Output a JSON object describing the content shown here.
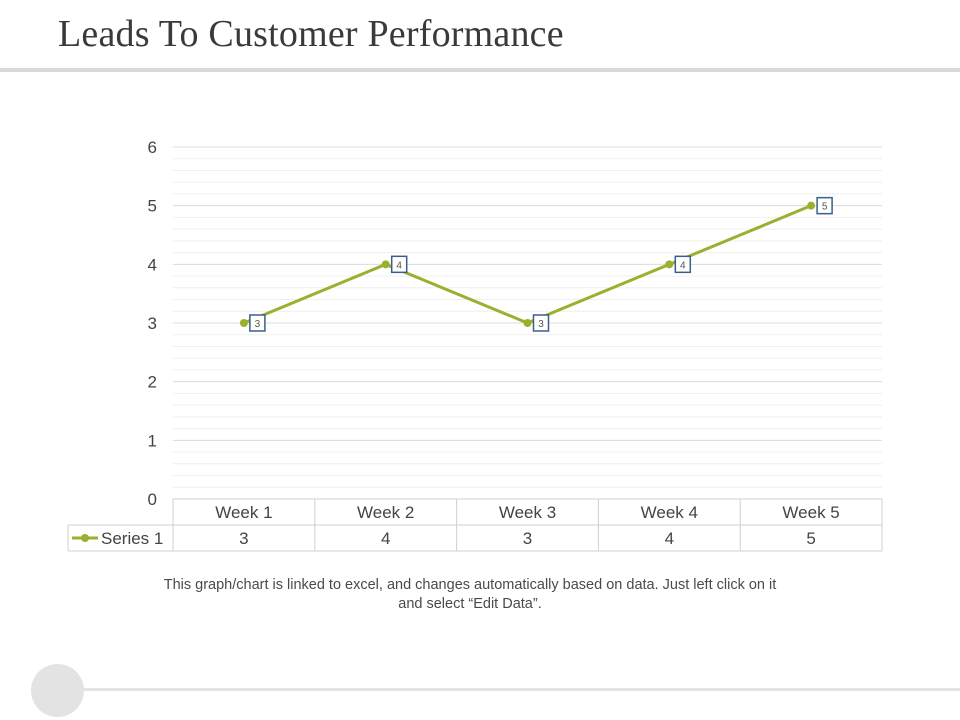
{
  "slide": {
    "title": "Leads To Customer Performance",
    "caption": "This graph/chart is linked to excel, and changes automatically based on data. Just left click on it and select “Edit Data”."
  },
  "chart_data": {
    "type": "line",
    "title": "",
    "xlabel": "",
    "ylabel": "",
    "categories": [
      "Week 1",
      "Week 2",
      "Week 3",
      "Week 4",
      "Week 5"
    ],
    "series": [
      {
        "name": "Series 1",
        "values": [
          3,
          4,
          3,
          4,
          5
        ],
        "color": "#9bb02e"
      }
    ],
    "ylim": [
      0,
      6
    ],
    "yticks": [
      0,
      1,
      2,
      3,
      4,
      5,
      6
    ],
    "grid": true,
    "data_labels": true,
    "data_table": true,
    "colors": {
      "grid": "#dcdcdc",
      "axis_text": "#444444",
      "label_border": "#3b5f8a"
    }
  }
}
